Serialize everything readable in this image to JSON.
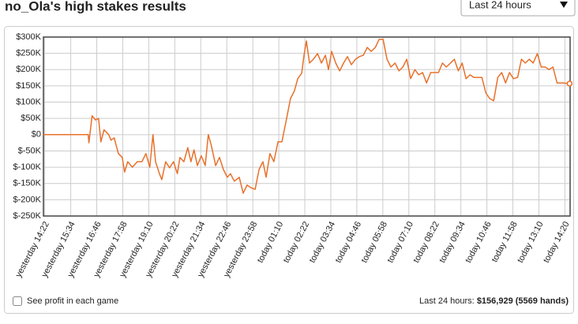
{
  "chart_data": {
    "type": "line",
    "title": "no_Ola's high stakes results",
    "color": "#e8702a",
    "grid": true,
    "xlim": [
      -0.05,
      20.2
    ],
    "xticks": [
      {
        "value": 0,
        "label": "yesterday 14:22"
      },
      {
        "value": 1,
        "label": "yesterday 15:34"
      },
      {
        "value": 2,
        "label": "yesterday 16:46"
      },
      {
        "value": 3,
        "label": "yesterday 17:58"
      },
      {
        "value": 4,
        "label": "yesterday 19:10"
      },
      {
        "value": 5,
        "label": "yesterday 20:22"
      },
      {
        "value": 6,
        "label": "yesterday 21:34"
      },
      {
        "value": 7,
        "label": "yesterday 22:46"
      },
      {
        "value": 8,
        "label": "yesterday 23:58"
      },
      {
        "value": 9,
        "label": "today 01:10"
      },
      {
        "value": 10,
        "label": "today 02:22"
      },
      {
        "value": 11,
        "label": "today 03:34"
      },
      {
        "value": 12,
        "label": "today 04:46"
      },
      {
        "value": 13,
        "label": "today 05:58"
      },
      {
        "value": 14,
        "label": "today 07:10"
      },
      {
        "value": 15,
        "label": "today 08:22"
      },
      {
        "value": 16,
        "label": "today 09:34"
      },
      {
        "value": 17,
        "label": "today 10:46"
      },
      {
        "value": 18,
        "label": "today 11:58"
      },
      {
        "value": 19,
        "label": "today 13:10"
      },
      {
        "value": 20,
        "label": "today 14:20"
      }
    ],
    "ylim": [
      -250000,
      300000
    ],
    "yticks": [
      {
        "value": -250000,
        "label": "$-250K"
      },
      {
        "value": -200000,
        "label": "$-200K"
      },
      {
        "value": -150000,
        "label": "$-150K"
      },
      {
        "value": -100000,
        "label": "$-100K"
      },
      {
        "value": -50000,
        "label": "$-50K"
      },
      {
        "value": 0,
        "label": "$0"
      },
      {
        "value": 50000,
        "label": "$50K"
      },
      {
        "value": 100000,
        "label": "$100K"
      },
      {
        "value": 150000,
        "label": "$150K"
      },
      {
        "value": 200000,
        "label": "$200K"
      },
      {
        "value": 250000,
        "label": "$250K"
      },
      {
        "value": 300000,
        "label": "$300K"
      }
    ],
    "x": [
      -0.05,
      1.67,
      1.7,
      1.82,
      1.95,
      2.07,
      2.16,
      2.28,
      2.46,
      2.55,
      2.67,
      2.83,
      2.98,
      3.07,
      3.19,
      3.37,
      3.56,
      3.74,
      3.89,
      4.04,
      4.16,
      4.26,
      4.41,
      4.5,
      4.65,
      4.8,
      4.95,
      5.1,
      5.2,
      5.35,
      5.5,
      5.62,
      5.74,
      5.87,
      6.02,
      6.17,
      6.29,
      6.41,
      6.57,
      6.72,
      6.87,
      7.02,
      7.14,
      7.29,
      7.48,
      7.63,
      7.78,
      7.93,
      8.09,
      8.24,
      8.39,
      8.51,
      8.66,
      8.81,
      8.97,
      9.12,
      9.27,
      9.45,
      9.6,
      9.73,
      9.88,
      9.97,
      10.06,
      10.18,
      10.33,
      10.49,
      10.64,
      10.79,
      10.91,
      11.03,
      11.19,
      11.34,
      11.49,
      11.64,
      11.79,
      11.95,
      12.1,
      12.25,
      12.4,
      12.55,
      12.71,
      12.86,
      13.01,
      13.16,
      13.31,
      13.47,
      13.62,
      13.77,
      13.92,
      14.07,
      14.23,
      14.38,
      14.53,
      14.68,
      14.84,
      14.99,
      15.14,
      15.29,
      15.44,
      15.6,
      15.75,
      15.9,
      16.05,
      16.2,
      16.35,
      16.5,
      16.66,
      16.81,
      16.96,
      17.11,
      17.26,
      17.42,
      17.57,
      17.72,
      17.87,
      18.02,
      18.18,
      18.33,
      18.48,
      18.63,
      18.78,
      18.94,
      19.09,
      19.24,
      19.39,
      19.54,
      19.7,
      19.91,
      20.18
    ],
    "values": [
      0,
      0,
      -25000,
      58000,
      45000,
      50000,
      -22000,
      15000,
      0,
      -17000,
      -10000,
      -58000,
      -70000,
      -115000,
      -83000,
      -100000,
      -83000,
      -83000,
      -58000,
      -100000,
      0,
      -83000,
      -120000,
      -138000,
      -83000,
      -102000,
      -83000,
      -120000,
      -70000,
      -83000,
      -40000,
      -83000,
      -47000,
      -95000,
      -65000,
      -95000,
      0,
      -35000,
      -95000,
      -70000,
      -107000,
      -131000,
      -120000,
      -143000,
      -131000,
      -180000,
      -155000,
      -163000,
      -168000,
      -107000,
      -83000,
      -131000,
      -58000,
      -83000,
      -22000,
      -22000,
      38000,
      111000,
      135000,
      172000,
      189000,
      244000,
      288000,
      220000,
      232000,
      249000,
      220000,
      244000,
      200000,
      256000,
      220000,
      196000,
      220000,
      240000,
      215000,
      232000,
      240000,
      244000,
      268000,
      256000,
      268000,
      293000,
      293000,
      232000,
      208000,
      220000,
      196000,
      208000,
      232000,
      172000,
      200000,
      184000,
      191000,
      159000,
      191000,
      191000,
      191000,
      220000,
      208000,
      220000,
      232000,
      196000,
      220000,
      172000,
      184000,
      176000,
      176000,
      176000,
      128000,
      111000,
      104000,
      176000,
      191000,
      159000,
      191000,
      172000,
      176000,
      232000,
      220000,
      232000,
      220000,
      249000,
      208000,
      208000,
      200000,
      208000,
      159000,
      159000,
      156929
    ]
  },
  "controls": {
    "range": "Last 24 hours",
    "checkbox": "See profit in each game"
  },
  "summary": {
    "label": "Last 24 hours:",
    "value": "$156,929 (5569 hands)"
  }
}
